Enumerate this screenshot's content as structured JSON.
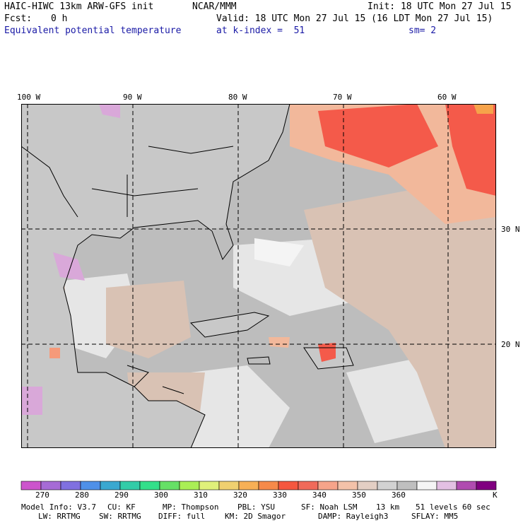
{
  "header": {
    "model_title": "HAIC-HIWC 13km ARW-GFS init",
    "org": "NCAR/MMM",
    "init": "Init: 18 UTC Mon 27 Jul 15",
    "fcst_label": "Fcst:",
    "fcst_value": "0 h",
    "valid": "Valid: 18 UTC Mon 27 Jul 15 (16 LDT Mon 27 Jul 15)",
    "field": "Equivalent potential temperature",
    "level": "at k-index =  51",
    "smooth": "sm= 2"
  },
  "map": {
    "lon_labels": [
      "100 W",
      "90 W",
      "80 W",
      "70 W",
      "60 W"
    ],
    "lat_labels": [
      "30 N",
      "20 N"
    ],
    "colors": {
      "base": "#bdbdbd",
      "land": "#c8c8c8",
      "light": "#e6e6e6",
      "white": "#f4f4f4",
      "tan": "#d9c2b4",
      "peach": "#f2b89b",
      "salmon": "#f59a7a",
      "red": "#f45a4a",
      "orange": "#f6a34a",
      "lilac": "#d9a8d9",
      "grid": "#000000"
    }
  },
  "colorbar": {
    "colors": [
      "#cc55cc",
      "#a66bd6",
      "#8070e0",
      "#4f90e8",
      "#3aa8d0",
      "#33cca8",
      "#33e08a",
      "#66e066",
      "#aaee55",
      "#e0f07a",
      "#f0d070",
      "#f7b056",
      "#f68a4a",
      "#f5573f",
      "#f06a5a",
      "#f6a48a",
      "#f3c2a9",
      "#e3cfc4",
      "#d2d2d2",
      "#bfbfbf",
      "#f5f5f5",
      "#e3c0e3",
      "#b04cb0",
      "#800080"
    ],
    "tick_labels": [
      "270",
      "280",
      "290",
      "300",
      "310",
      "320",
      "330",
      "340",
      "350",
      "360"
    ],
    "unit": "K"
  },
  "footer": {
    "line1": [
      "Model Info: V3.7",
      "CU: KF",
      "MP: Thompson",
      "PBL: YSU",
      "SF: Noah LSM",
      "13 km",
      "51 levels",
      "60 sec"
    ],
    "line2": [
      "LW: RRTMG",
      "SW: RRTMG",
      "DIFF: full",
      "KM: 2D Smagor",
      "DAMP: Rayleigh3",
      "SFLAY: MM5"
    ]
  }
}
